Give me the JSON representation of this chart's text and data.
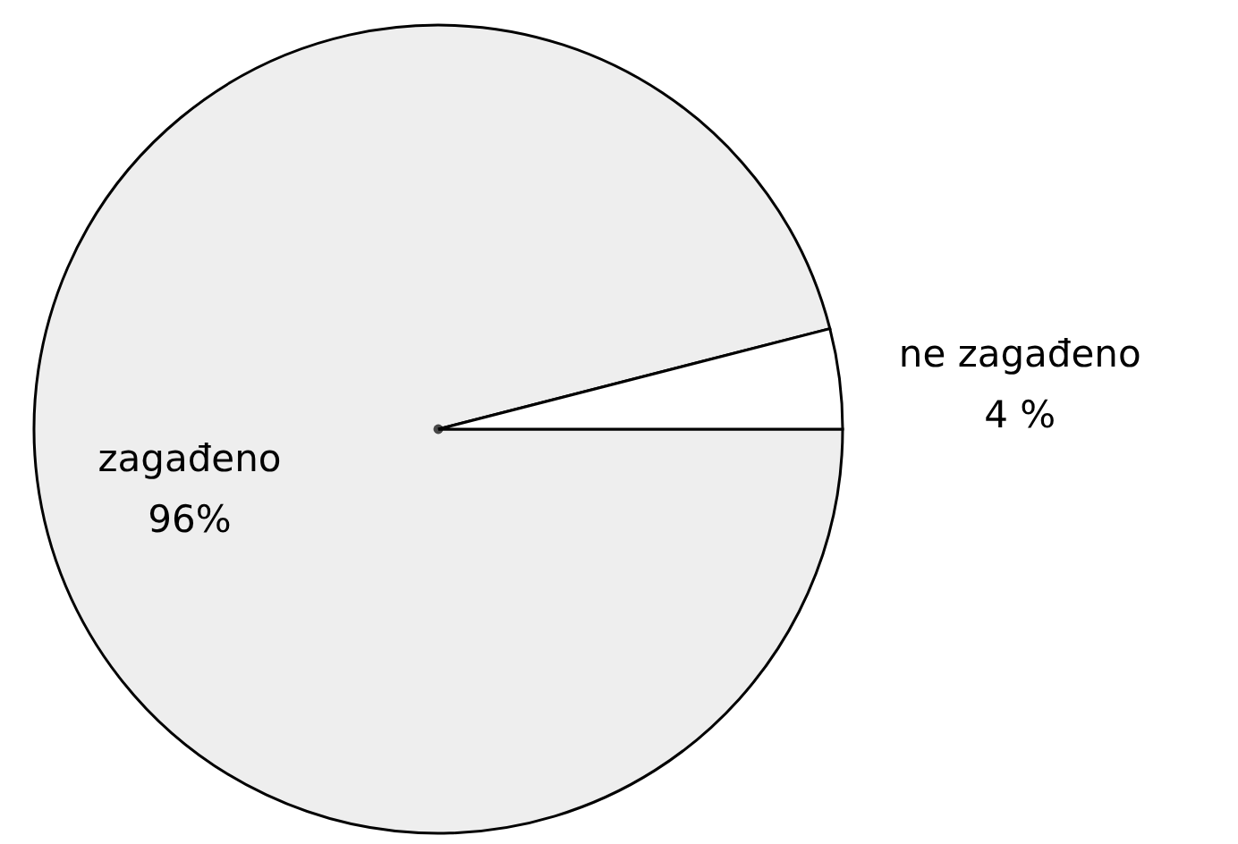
{
  "chart_data": {
    "type": "pie",
    "categories": [
      "zagađeno",
      "ne zagađeno"
    ],
    "values": [
      96,
      4
    ],
    "value_labels": [
      "96%",
      "4 %"
    ],
    "colors": [
      "#eeeeee",
      "#ffffff"
    ]
  }
}
